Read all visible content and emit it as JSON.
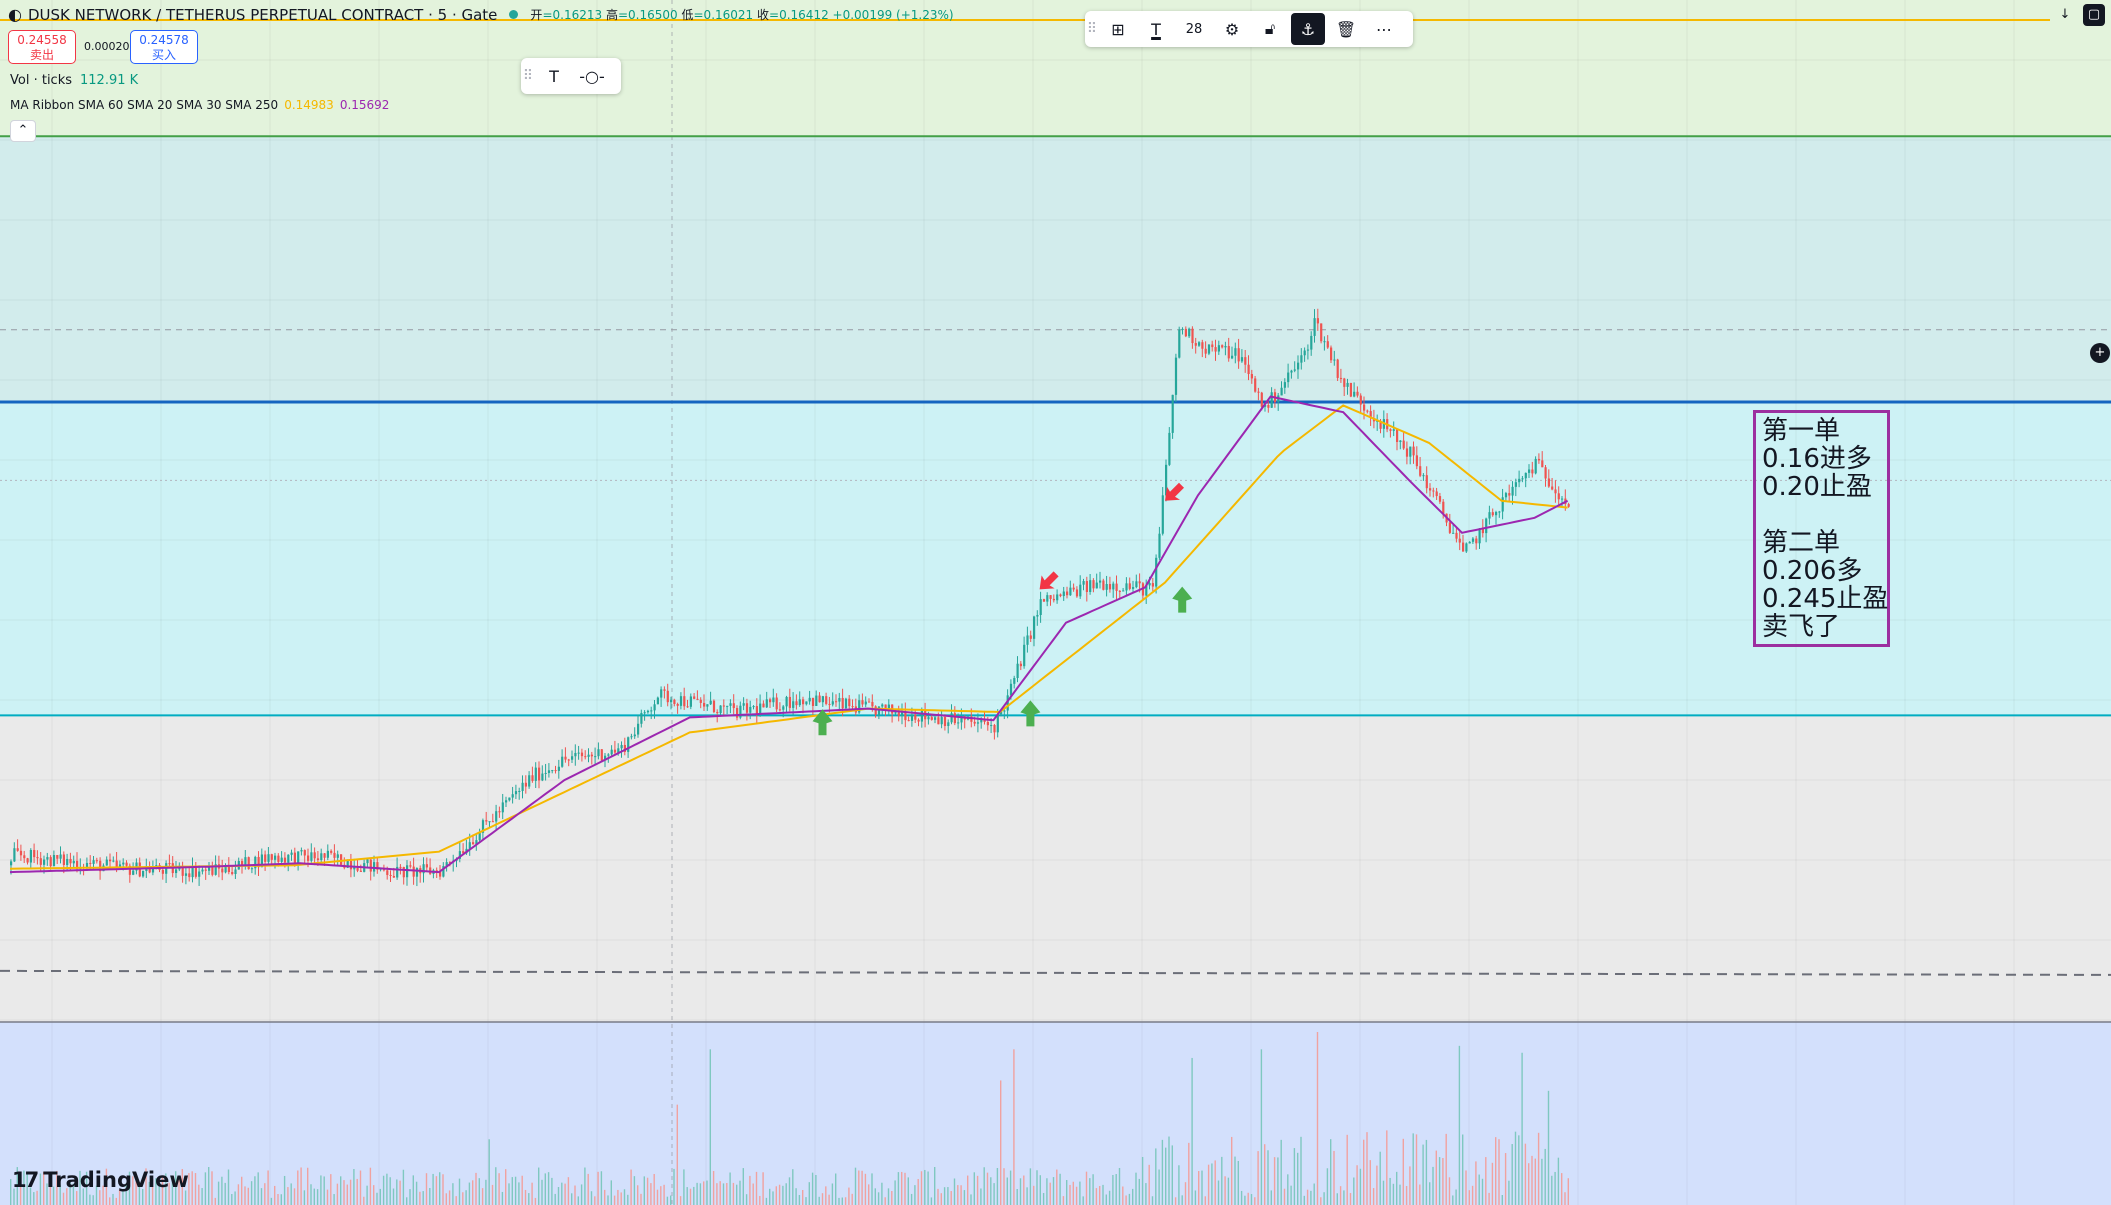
{
  "header": {
    "symbol": "DUSK NETWORK / TETHERUS PERPETUAL CONTRACT · 5 · Gate",
    "open_label": "开",
    "open": "=0.16213",
    "high_label": "高",
    "high": "=0.16500",
    "low_label": "低",
    "low": "=0.16021",
    "close_label": "收",
    "close": "=0.16412",
    "change": "+0.00199 (+1.23%)"
  },
  "trade": {
    "sell_price": "0.24558",
    "sell_label": "卖出",
    "spread": "0.00020",
    "buy_price": "0.24578",
    "buy_label": "买入"
  },
  "volume_legend": {
    "label": "Vol · ticks",
    "value": "112.91 K"
  },
  "ma_legend": {
    "label": "MA Ribbon SMA 60 SMA 20 SMA 30 SMA 250",
    "value_1": "0.14983",
    "value_2": "0.15692"
  },
  "toolbar": {
    "font_size": "28"
  },
  "note": {
    "lines": [
      "第一单",
      "0.16进多",
      "0.20止盈",
      "",
      "第二单",
      "0.206多",
      "0.245止盈",
      "卖飞了"
    ]
  },
  "branding": {
    "logo_text": "TradingView"
  },
  "colors": {
    "up": "#26a69a",
    "down": "#ef5350",
    "sma_purple": "#9c27b0",
    "sma_yellow": "#f5b800",
    "zone_green": "#e3f3dc",
    "zone_teal": "#d2ecec",
    "zone_cyan": "#cdf2f5",
    "zone_grey": "#eaeaea",
    "zone_volume": "#d3e0fc"
  },
  "chart_data": {
    "type": "candlestick",
    "y_axis": "price",
    "ylim": [
      0.115,
      0.265
    ],
    "grid": true,
    "levels": {
      "top_zone_line": 0.245,
      "resistance_line": 0.206,
      "support_line": 0.16,
      "dashed_line": 0.1225,
      "dashed_price_line": 0.2166,
      "dotted_price_line": 0.1945
    },
    "price_path": [
      [
        0,
        0.138
      ],
      [
        1,
        0.1395
      ],
      [
        18,
        0.1385
      ],
      [
        36,
        0.1375
      ],
      [
        58,
        0.1372
      ],
      [
        66,
        0.1375
      ],
      [
        78,
        0.1392
      ],
      [
        96,
        0.1392
      ],
      [
        116,
        0.137
      ],
      [
        130,
        0.1372
      ],
      [
        145,
        0.1445
      ],
      [
        158,
        0.151
      ],
      [
        168,
        0.1535
      ],
      [
        185,
        0.155
      ],
      [
        196,
        0.163
      ],
      [
        220,
        0.1605
      ],
      [
        240,
        0.1625
      ],
      [
        252,
        0.1615
      ],
      [
        268,
        0.1605
      ],
      [
        298,
        0.1585
      ],
      [
        302,
        0.1625
      ],
      [
        312,
        0.1765
      ],
      [
        330,
        0.1795
      ],
      [
        346,
        0.1785
      ],
      [
        348,
        0.1865
      ],
      [
        354,
        0.217
      ],
      [
        362,
        0.214
      ],
      [
        372,
        0.213
      ],
      [
        380,
        0.205
      ],
      [
        392,
        0.213
      ],
      [
        395,
        0.218
      ],
      [
        404,
        0.2085
      ],
      [
        424,
        0.1985
      ],
      [
        438,
        0.186
      ],
      [
        440,
        0.1835
      ],
      [
        452,
        0.1915
      ],
      [
        462,
        0.197
      ],
      [
        472,
        0.191
      ]
    ],
    "sma_20_path": [
      [
        0,
        0.137
      ],
      [
        60,
        0.1378
      ],
      [
        88,
        0.1383
      ],
      [
        130,
        0.137
      ],
      [
        168,
        0.1505
      ],
      [
        206,
        0.1597
      ],
      [
        260,
        0.161
      ],
      [
        298,
        0.1593
      ],
      [
        320,
        0.1736
      ],
      [
        344,
        0.1788
      ],
      [
        360,
        0.1923
      ],
      [
        382,
        0.2068
      ],
      [
        404,
        0.2045
      ],
      [
        424,
        0.1945
      ],
      [
        440,
        0.1868
      ],
      [
        462,
        0.189
      ],
      [
        472,
        0.1915
      ]
    ],
    "sma_250_path": [
      [
        0,
        0.1375
      ],
      [
        86,
        0.138
      ],
      [
        130,
        0.14
      ],
      [
        206,
        0.1575
      ],
      [
        260,
        0.161
      ],
      [
        300,
        0.1605
      ],
      [
        350,
        0.1795
      ],
      [
        385,
        0.1985
      ],
      [
        404,
        0.2055
      ],
      [
        430,
        0.2
      ],
      [
        452,
        0.1915
      ],
      [
        472,
        0.1905
      ]
    ],
    "volume_ylim": [
      0,
      100
    ],
    "volume_spikes": [
      [
        0,
        15
      ],
      [
        91,
        12
      ],
      [
        145,
        38
      ],
      [
        202,
        58
      ],
      [
        212,
        90
      ],
      [
        300,
        72
      ],
      [
        304,
        90
      ],
      [
        358,
        85
      ],
      [
        379,
        90
      ],
      [
        396,
        100
      ],
      [
        439,
        92
      ],
      [
        458,
        88
      ],
      [
        466,
        66
      ]
    ],
    "markers": [
      {
        "kind": "buy-arrow",
        "index": 245,
        "price": 0.1565
      },
      {
        "kind": "buy-arrow",
        "index": 308,
        "price": 0.1578
      },
      {
        "kind": "buy-arrow",
        "index": 354,
        "price": 0.1745
      },
      {
        "kind": "sell-arrow",
        "index": 312,
        "price": 0.1785
      },
      {
        "kind": "sell-arrow",
        "index": 350,
        "price": 0.1915
      }
    ]
  }
}
